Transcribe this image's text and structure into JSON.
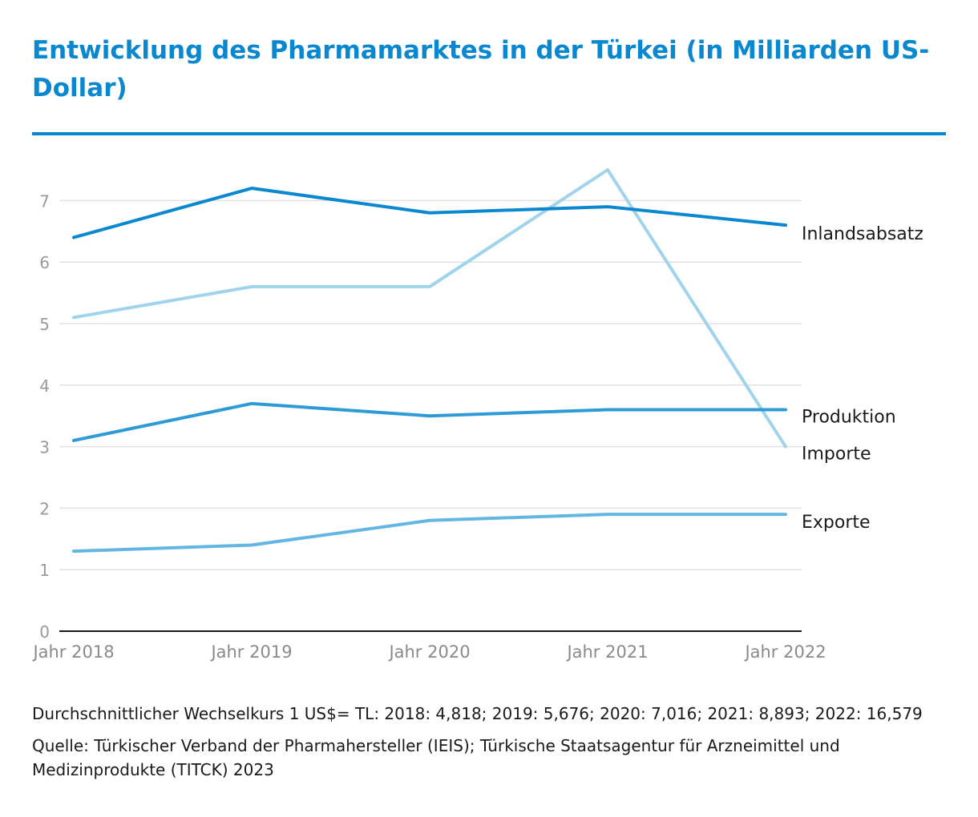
{
  "title": "Entwicklung des Pharmamarktes in der Türkei (in Milliarden US-Dollar)",
  "colors": {
    "accent": "#0a88cf",
    "Inlandsabsatz": "#0a88cf",
    "Importe": "#9fd4ec",
    "Produktion": "#2f9bd6",
    "Exporte": "#63b6e2",
    "grid": "#e2e2e2",
    "tick": "#9a9a9a"
  },
  "chart_data": {
    "type": "line",
    "categories": [
      "Jahr 2018",
      "Jahr 2019",
      "Jahr 2020",
      "Jahr 2021",
      "Jahr 2022"
    ],
    "ylim": [
      0,
      7
    ],
    "yticks": [
      "0",
      "1",
      "2",
      "3",
      "4",
      "5",
      "6",
      "7"
    ],
    "grid": true,
    "legend": "direct labels at line ends",
    "series": [
      {
        "name": "Inlandsabsatz",
        "values": [
          6.4,
          7.2,
          6.8,
          6.9,
          6.6
        ]
      },
      {
        "name": "Importe",
        "values": [
          5.1,
          5.6,
          5.6,
          7.5,
          3.0
        ]
      },
      {
        "name": "Produktion",
        "values": [
          3.1,
          3.7,
          3.5,
          3.6,
          3.6
        ]
      },
      {
        "name": "Exporte",
        "values": [
          1.3,
          1.4,
          1.8,
          1.9,
          1.9
        ]
      }
    ]
  },
  "notes": {
    "exchange_rate": "Durchschnittlicher Wechselkurs 1 US$= TL: 2018: 4,818; 2019: 5,676; 2020: 7,016; 2021: 8,893; 2022: 16,579",
    "source": "Quelle: Türkischer Verband der Pharmahersteller (IEIS); Türkische Staatsagentur für Arzneimittel und Medizinprodukte (TITCK) 2023"
  }
}
